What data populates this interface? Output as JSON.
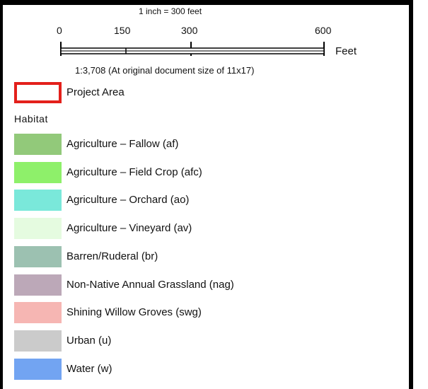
{
  "scale": {
    "title": "1 inch = 300 feet",
    "ticks": [
      "0",
      "150",
      "300",
      "600"
    ],
    "unit": "Feet",
    "ratio": "1:3,708 (At original document size of 11x17)"
  },
  "legend": {
    "project_area": {
      "label": "Project Area",
      "color": "#e3201b"
    },
    "habitat_heading": "Habitat",
    "items": [
      {
        "label": "Agriculture – Fallow (af)",
        "color": "#92c97a"
      },
      {
        "label": "Agriculture – Field Crop (afc)",
        "color": "#8ef06a"
      },
      {
        "label": "Agriculture – Orchard (ao)",
        "color": "#7ae8da"
      },
      {
        "label": "Agriculture – Vineyard (av)",
        "color": "#e5fbe0"
      },
      {
        "label": "Barren/Ruderal (br)",
        "color": "#9cc1b1"
      },
      {
        "label": "Non-Native Annual Grassland (nag)",
        "color": "#bca8b8"
      },
      {
        "label": "Shining Willow Groves (swg)",
        "color": "#f6b6b3"
      },
      {
        "label": "Urban (u)",
        "color": "#cbcbcb"
      },
      {
        "label": "Water (w)",
        "color": "#72a4f2"
      }
    ]
  }
}
